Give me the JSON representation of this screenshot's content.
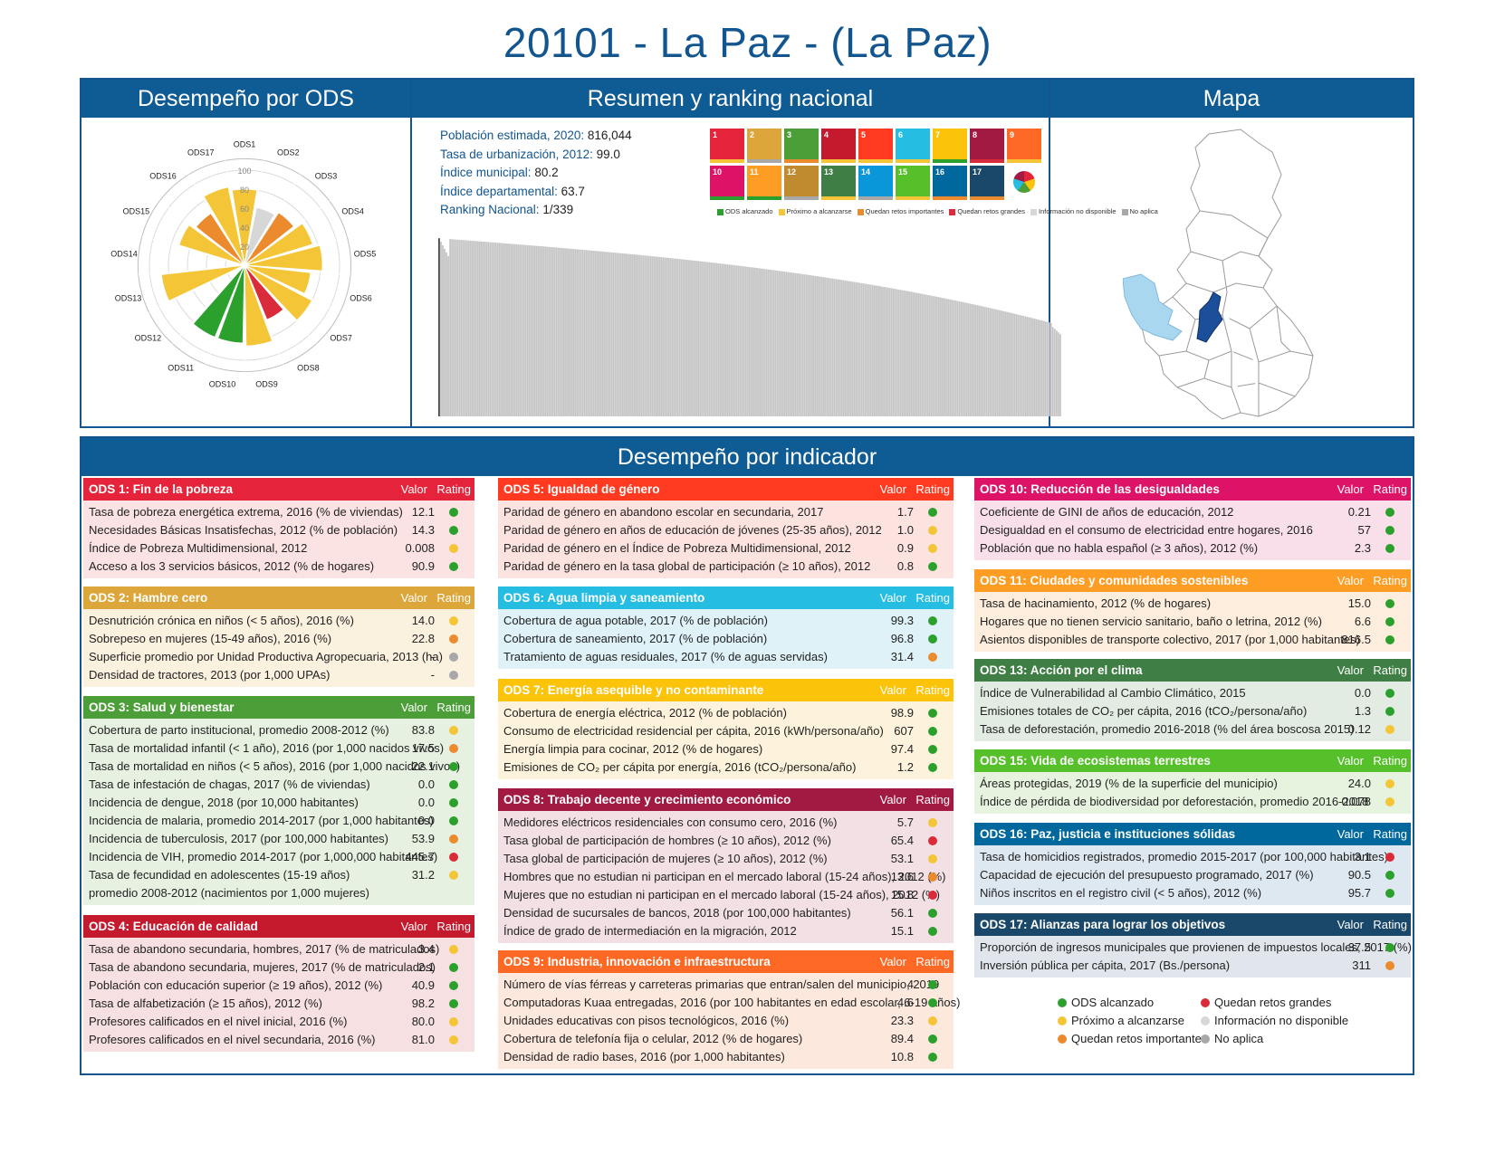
{
  "title": "20101 - La Paz - (La Paz)",
  "panels": {
    "left_title": "Desempeño por ODS",
    "middle_title": "Resumen y ranking nacional",
    "right_title": "Mapa",
    "bottom_title": "Desempeño por indicador"
  },
  "stats": [
    {
      "label": "Población estimada, 2020:",
      "value": "816,044"
    },
    {
      "label": "Tasa de urbanización, 2012:",
      "value": "99.0"
    },
    {
      "label": "Índice municipal:",
      "value": "80.2"
    },
    {
      "label": "Índice departamental:",
      "value": "63.7"
    },
    {
      "label": "Ranking Nacional:",
      "value": "1/339"
    }
  ],
  "colors": {
    "green": "#2ca02c",
    "yellow": "#f3c537",
    "orange": "#ec8a2e",
    "red": "#d92b3a",
    "lightgray": "#d7d7d7",
    "gray": "#a8a8a8",
    "blue": "#0f5b94"
  },
  "sdg_tiles": [
    {
      "num": "1",
      "color": "#e5243b",
      "status": "yellow"
    },
    {
      "num": "2",
      "color": "#dda63a",
      "status": "gray"
    },
    {
      "num": "3",
      "color": "#4c9f38",
      "status": "orange"
    },
    {
      "num": "4",
      "color": "#c5192d",
      "status": "yellow"
    },
    {
      "num": "5",
      "color": "#ff3a21",
      "status": "yellow"
    },
    {
      "num": "6",
      "color": "#26bde2",
      "status": "yellow"
    },
    {
      "num": "7",
      "color": "#fcc30b",
      "status": "green"
    },
    {
      "num": "8",
      "color": "#a21942",
      "status": "red"
    },
    {
      "num": "9",
      "color": "#fd6925",
      "status": "yellow"
    },
    {
      "num": "10",
      "color": "#dd1367",
      "status": "green"
    },
    {
      "num": "11",
      "color": "#fd9d24",
      "status": "green"
    },
    {
      "num": "12",
      "color": "#bf8b2e",
      "status": "gray"
    },
    {
      "num": "13",
      "color": "#3f7e44",
      "status": "yellow"
    },
    {
      "num": "14",
      "color": "#0a97d9",
      "status": "gray"
    },
    {
      "num": "15",
      "color": "#56c02b",
      "status": "yellow"
    },
    {
      "num": "16",
      "color": "#00689d",
      "status": "orange"
    },
    {
      "num": "17",
      "color": "#19486a",
      "status": "orange"
    }
  ],
  "sdg_legend": [
    "ODS alcanzado",
    "Próximo a alcanzarse",
    "Quedan retos importantes",
    "Quedan retos grandes",
    "Información no disponible",
    "No aplica"
  ],
  "legend": [
    "ODS alcanzado",
    "Próximo a alcanzarse",
    "Quedan retos importantes",
    "Quedan retos grandes",
    "Información no disponible",
    "No aplica"
  ],
  "table_headers": {
    "value": "Valor",
    "rating": "Rating"
  },
  "chart_data": [
    {
      "type": "polar-bar",
      "categories": [
        "ODS1",
        "ODS2",
        "ODS3",
        "ODS4",
        "ODS5",
        "ODS6",
        "ODS7",
        "ODS8",
        "ODS9",
        "ODS10",
        "ODS11",
        "ODS12",
        "ODS13",
        "ODS14",
        "ODS15",
        "ODS16",
        "ODS17"
      ],
      "values": [
        80,
        62,
        66,
        75,
        82,
        70,
        80,
        62,
        85,
        82,
        82,
        0,
        88,
        0,
        72,
        65,
        84
      ],
      "ratings": [
        "yellow",
        "lightgray",
        "orange",
        "yellow",
        "yellow",
        "yellow",
        "yellow",
        "red",
        "yellow",
        "green",
        "green",
        "none",
        "yellow",
        "none",
        "yellow",
        "orange",
        "yellow"
      ],
      "rlim": [
        0,
        100
      ],
      "ticks": [
        "20",
        "40",
        "60",
        "80",
        "100"
      ]
    },
    {
      "type": "bar",
      "series_count": 339,
      "highlight_index": 0,
      "values_start": 80.2,
      "values_end": 41.0,
      "ylim": [
        0,
        100
      ]
    }
  ],
  "tables": [
    {
      "id": "ods1",
      "title": "ODS 1: Fin de la pobreza",
      "color": "#e5243b",
      "bg": "#fbe3e4",
      "rows": [
        {
          "label": "Tasa de pobreza energética extrema, 2016 (% de viviendas)",
          "value": "12.1",
          "rating": "green"
        },
        {
          "label": "Necesidades Básicas Insatisfechas, 2012 (% de población)",
          "value": "14.3",
          "rating": "green"
        },
        {
          "label": "Índice de Pobreza Multidimensional, 2012",
          "value": "0.008",
          "rating": "yellow"
        },
        {
          "label": "Acceso a los 3 servicios básicos, 2012 (% de hogares)",
          "value": "90.9",
          "rating": "green"
        }
      ]
    },
    {
      "id": "ods2",
      "title": "ODS 2: Hambre cero",
      "color": "#dda63a",
      "bg": "#fbf1df",
      "rows": [
        {
          "label": "Desnutrición crónica en niños (< 5 años), 2016 (%)",
          "value": "14.0",
          "rating": "yellow"
        },
        {
          "label": "Sobrepeso en mujeres (15-49 años), 2016 (%)",
          "value": "22.8",
          "rating": "orange"
        },
        {
          "label": "Superficie promedio por Unidad Productiva Agropecuaria, 2013 (ha)",
          "value": "-",
          "rating": "gray"
        },
        {
          "label": "Densidad de tractores, 2013 (por 1,000 UPAs)",
          "value": "-",
          "rating": "gray"
        }
      ]
    },
    {
      "id": "ods3",
      "title": "ODS 3: Salud y bienestar",
      "color": "#4c9f38",
      "bg": "#e6f1e1",
      "rows": [
        {
          "label": "Cobertura de parto institucional, promedio 2008-2012 (%)",
          "value": "83.8",
          "rating": "yellow"
        },
        {
          "label": "Tasa de mortalidad infantil (< 1 año), 2016 (por 1,000 nacidos vivos)",
          "value": "17.5",
          "rating": "orange"
        },
        {
          "label": "Tasa de mortalidad en niños (< 5 años), 2016 (por 1,000 nacidos vivos)",
          "value": "22.1",
          "rating": "green"
        },
        {
          "label": "Tasa de infestación de chagas, 2017 (% de viviendas)",
          "value": "0.0",
          "rating": "green"
        },
        {
          "label": "Incidencia de dengue, 2018 (por 10,000 habitantes)",
          "value": "0.0",
          "rating": "green"
        },
        {
          "label": "Incidencia de malaria, promedio 2014-2017 (por 1,000 habitantes)",
          "value": "0.0",
          "rating": "green"
        },
        {
          "label": "Incidencia de tuberculosis, 2017 (por 100,000 habitantes)",
          "value": "53.9",
          "rating": "orange"
        },
        {
          "label": "Incidencia de VIH, promedio 2014-2017 (por 1,000,000 habitantes)",
          "value": "445.7",
          "rating": "red"
        },
        {
          "label": "Tasa de fecundidad en adolescentes (15-19 años) promedio 2008-2012 (nacimientos por 1,000 mujeres)",
          "value": "31.2",
          "rating": "yellow",
          "tall": true
        }
      ]
    },
    {
      "id": "ods4",
      "title": "ODS 4: Educación de calidad",
      "color": "#c5192d",
      "bg": "#f7e0e2",
      "rows": [
        {
          "label": "Tasa de abandono secundaria, hombres, 2017 (% de matriculados)",
          "value": "3.4",
          "rating": "yellow"
        },
        {
          "label": "Tasa de abandono secundaria, mujeres, 2017 (% de matriculados)",
          "value": "2.1",
          "rating": "green"
        },
        {
          "label": "Población con educación superior (≥ 19 años), 2012 (%)",
          "value": "40.9",
          "rating": "green"
        },
        {
          "label": "Tasa de alfabetización (≥ 15 años), 2012 (%)",
          "value": "98.2",
          "rating": "green"
        },
        {
          "label": "Profesores calificados en el nivel inicial, 2016 (%)",
          "value": "80.0",
          "rating": "yellow"
        },
        {
          "label": "Profesores calificados en el nivel secundaria, 2016 (%)",
          "value": "81.0",
          "rating": "yellow"
        }
      ]
    },
    {
      "id": "ods5",
      "title": "ODS 5: Igualdad de género",
      "color": "#ff3a21",
      "bg": "#fde3df",
      "rows": [
        {
          "label": "Paridad de género en abandono escolar en secundaria, 2017",
          "value": "1.7",
          "rating": "green"
        },
        {
          "label": "Paridad de género en años de educación de jóvenes (25-35 años), 2012",
          "value": "1.0",
          "rating": "yellow"
        },
        {
          "label": "Paridad de género en el Índice de Pobreza Multidimensional, 2012",
          "value": "0.9",
          "rating": "yellow"
        },
        {
          "label": "Paridad de género en la tasa global de participación (≥ 10 años), 2012",
          "value": "0.8",
          "rating": "green"
        }
      ]
    },
    {
      "id": "ods6",
      "title": "ODS 6: Agua limpia y saneamiento",
      "color": "#26bde2",
      "bg": "#def2f8",
      "rows": [
        {
          "label": "Cobertura de agua potable, 2017 (% de población)",
          "value": "99.3",
          "rating": "green"
        },
        {
          "label": "Cobertura de saneamiento, 2017 (% de población)",
          "value": "96.8",
          "rating": "green"
        },
        {
          "label": "Tratamiento de aguas residuales, 2017 (% de aguas servidas)",
          "value": "31.4",
          "rating": "orange"
        }
      ]
    },
    {
      "id": "ods7",
      "title": "ODS 7: Energía asequible y no contaminante",
      "color": "#fcc30b",
      "bg": "#fdf3dc",
      "rows": [
        {
          "label": "Cobertura de energía eléctrica, 2012 (% de población)",
          "value": "98.9",
          "rating": "green"
        },
        {
          "label": "Consumo de electricidad residencial per cápita, 2016 (kWh/persona/año)",
          "value": "607",
          "rating": "green"
        },
        {
          "label": "Energía limpia para cocinar, 2012 (% de hogares)",
          "value": "97.4",
          "rating": "green"
        },
        {
          "label": "Emisiones de CO₂ per cápita por energía, 2016 (tCO₂/persona/año)",
          "value": "1.2",
          "rating": "green"
        }
      ]
    },
    {
      "id": "ods8",
      "title": "ODS 8: Trabajo decente y crecimiento económico",
      "color": "#a21942",
      "bg": "#f3e0e5",
      "rows": [
        {
          "label": "Medidores eléctricos residenciales con consumo cero, 2016 (%)",
          "value": "5.7",
          "rating": "yellow"
        },
        {
          "label": "Tasa global de participación de hombres (≥ 10 años), 2012 (%)",
          "value": "65.4",
          "rating": "red"
        },
        {
          "label": "Tasa global de participación de mujeres (≥ 10 años), 2012 (%)",
          "value": "53.1",
          "rating": "yellow"
        },
        {
          "label": "Hombres que no estudian ni participan en el mercado laboral (15-24 años), 2012 (%)",
          "value": "13.6",
          "rating": "orange"
        },
        {
          "label": "Mujeres que no estudian ni participan en el mercado laboral (15-24 años), 2012 (%)",
          "value": "15.8",
          "rating": "red"
        },
        {
          "label": "Densidad de sucursales de bancos, 2018 (por 100,000 habitantes)",
          "value": "56.1",
          "rating": "green"
        },
        {
          "label": "Índice de grado de intermediación en la migración, 2012",
          "value": "15.1",
          "rating": "green"
        }
      ]
    },
    {
      "id": "ods9",
      "title": "ODS 9: Industria, innovación e infraestructura",
      "color": "#fd6925",
      "bg": "#fde8de",
      "rows": [
        {
          "label": "Número de vías férreas y carreteras primarias que entran/salen del municipio, 2019",
          "value": "4",
          "rating": "green"
        },
        {
          "label": "Computadoras Kuaa entregadas, 2016 (por 100 habitantes en edad escolar, 6-19 años)",
          "value": "4.6",
          "rating": "green"
        },
        {
          "label": "Unidades educativas con pisos tecnológicos, 2016 (%)",
          "value": "23.3",
          "rating": "yellow"
        },
        {
          "label": "Cobertura de telefonía fija o celular, 2012 (% de hogares)",
          "value": "89.4",
          "rating": "green"
        },
        {
          "label": "Densidad de radio bases, 2016 (por 1,000 habitantes)",
          "value": "10.8",
          "rating": "green"
        }
      ]
    },
    {
      "id": "ods10",
      "title": "ODS 10: Reducción de las desigualdades",
      "color": "#dd1367",
      "bg": "#f9dfea",
      "rows": [
        {
          "label": "Coeficiente de GINI de años de educación, 2012",
          "value": "0.21",
          "rating": "green"
        },
        {
          "label": "Desigualdad en el consumo de electricidad entre hogares, 2016",
          "value": "57",
          "rating": "green"
        },
        {
          "label": "Población que no habla español (≥ 3 años), 2012 (%)",
          "value": "2.3",
          "rating": "green"
        }
      ]
    },
    {
      "id": "ods11",
      "title": "ODS 11: Ciudades y comunidades sostenibles",
      "color": "#fd9d24",
      "bg": "#fdeddc",
      "rows": [
        {
          "label": "Tasa de hacinamiento, 2012 (% de hogares)",
          "value": "15.0",
          "rating": "green"
        },
        {
          "label": "Hogares que no tienen servicio sanitario, baño o letrina, 2012 (%)",
          "value": "6.6",
          "rating": "green"
        },
        {
          "label": "Asientos disponibles de transporte colectivo, 2017 (por 1,000 habitantes)",
          "value": "816.5",
          "rating": "green"
        }
      ]
    },
    {
      "id": "ods13",
      "title": "ODS 13: Acción por el clima",
      "color": "#3f7e44",
      "bg": "#e2ece2",
      "rows": [
        {
          "label": "Índice de Vulnerabilidad al Cambio Climático, 2015",
          "value": "0.0",
          "rating": "green"
        },
        {
          "label": "Emisiones totales de CO₂ per cápita, 2016 (tCO₂/persona/año)",
          "value": "1.3",
          "rating": "green"
        },
        {
          "label": "Tasa de deforestación, promedio 2016-2018 (% del área boscosa 2015)",
          "value": "0.12",
          "rating": "yellow"
        }
      ]
    },
    {
      "id": "ods15",
      "title": "ODS 15: Vida de ecosistemas terrestres",
      "color": "#56c02b",
      "bg": "#e6f4df",
      "rows": [
        {
          "label": "Áreas protegidas, 2019 (% de la superficie del municipio)",
          "value": "24.0",
          "rating": "yellow"
        },
        {
          "label": "Índice de pérdida de biodiversidad por deforestación, promedio 2016-2018",
          "value": "0.078",
          "rating": "yellow"
        }
      ]
    },
    {
      "id": "ods16",
      "title": "ODS 16: Paz, justicia e instituciones sólidas",
      "color": "#00689d",
      "bg": "#dee8f0",
      "rows": [
        {
          "label": "Tasa de homicidios registrados, promedio 2015-2017 (por 100,000 habitantes)",
          "value": "3.1",
          "rating": "red"
        },
        {
          "label": "Capacidad de ejecución del presupuesto programado, 2017 (%)",
          "value": "90.5",
          "rating": "green"
        },
        {
          "label": "Niños inscritos en el registro civil (< 5 años), 2012 (%)",
          "value": "95.7",
          "rating": "green"
        }
      ]
    },
    {
      "id": "ods17",
      "title": "ODS 17: Alianzas para lograr los objetivos",
      "color": "#19486a",
      "bg": "#e0e6ec",
      "rows": [
        {
          "label": "Proporción de ingresos municipales que provienen de impuestos locales, 2017 (%)",
          "value": "37.5",
          "rating": "green"
        },
        {
          "label": "Inversión pública per cápita, 2017 (Bs./persona)",
          "value": "311",
          "rating": "orange"
        }
      ]
    }
  ]
}
